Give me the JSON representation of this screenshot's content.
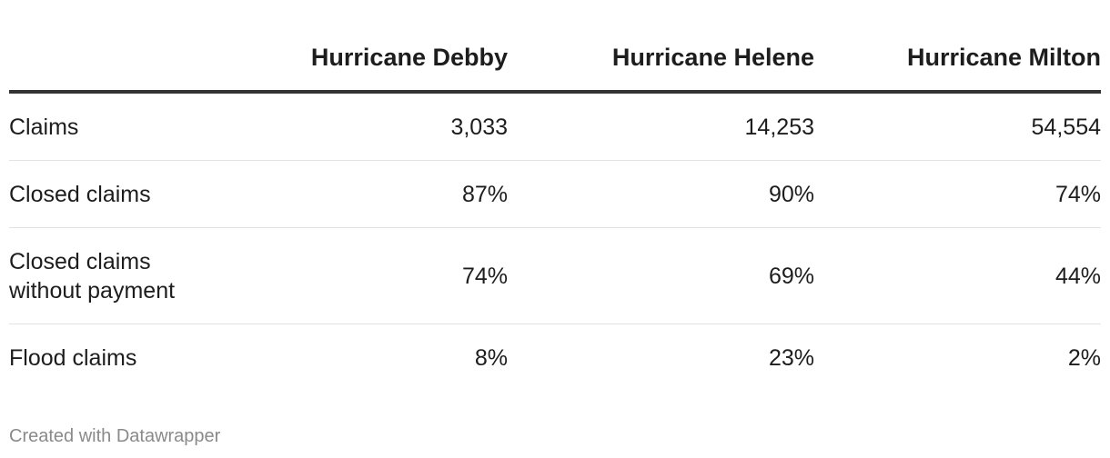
{
  "chart_data": {
    "type": "table",
    "columns": [
      "",
      "Hurricane Debby",
      "Hurricane Helene",
      "Hurricane Milton"
    ],
    "rows": [
      {
        "label": "Claims",
        "values": [
          "3,033",
          "14,253",
          "54,554"
        ]
      },
      {
        "label": "Closed claims",
        "values": [
          "87%",
          "90%",
          "74%"
        ]
      },
      {
        "label": "Closed claims without payment",
        "values": [
          "74%",
          "69%",
          "44%"
        ]
      },
      {
        "label": "Flood claims",
        "values": [
          "8%",
          "23%",
          "2%"
        ]
      }
    ]
  },
  "footer": {
    "credit": "Created with Datawrapper"
  },
  "colors": {
    "text": "#1d1d1d",
    "header_rule": "#333333",
    "row_divider": "#e2e2e2",
    "credit_text": "#8a8a8a"
  }
}
